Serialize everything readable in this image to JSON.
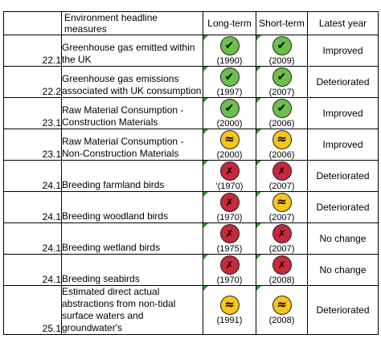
{
  "header": {
    "measure": "Environment headline measures",
    "long_term": "Long-term",
    "short_term": "Short-term",
    "latest_year": "Latest year"
  },
  "status_symbols": {
    "improving": "✔",
    "little_or_no_change": "≈",
    "deteriorating": "✗"
  },
  "status_colors": {
    "improving": "#6cc04a",
    "little_or_no_change": "#f5c518",
    "deteriorating": "#c8283c",
    "cell_marker": "#2f9a2f"
  },
  "rows": [
    {
      "id": "22.1",
      "measure": "Greenhouse gas emitted within the UK",
      "long": {
        "status": "improving",
        "year": "(1990)"
      },
      "short": {
        "status": "improving",
        "year": "(2009)"
      },
      "latest": "Improved"
    },
    {
      "id": "22.2",
      "measure": "Greenhouse gas emissions associated with UK consumption",
      "long": {
        "status": "improving",
        "year": "(1997)"
      },
      "short": {
        "status": "improving",
        "year": "(2007)"
      },
      "latest": "Deteriorated"
    },
    {
      "id": "23.1",
      "measure": "Raw Material Consumption - Construction Materials",
      "long": {
        "status": "improving",
        "year": "(2000)"
      },
      "short": {
        "status": "improving",
        "year": "(2006)"
      },
      "latest": "Improved"
    },
    {
      "id": "23.1",
      "measure": "Raw Material Consumption - Non-Construction Materials",
      "long": {
        "status": "little_or_no_change",
        "year": "(2000)"
      },
      "short": {
        "status": "little_or_no_change",
        "year": "(2006)"
      },
      "latest": "Improved"
    },
    {
      "id": "24.1",
      "measure": "Breeding farmland birds",
      "long": {
        "status": "deteriorating",
        "year": "'(1970)"
      },
      "short": {
        "status": "deteriorating",
        "year": "(2007)"
      },
      "latest": "Deteriorated"
    },
    {
      "id": "24.1",
      "measure": "Breeding woodland birds",
      "long": {
        "status": "deteriorating",
        "year": "(1970)"
      },
      "short": {
        "status": "little_or_no_change",
        "year": "(2007)"
      },
      "latest": "Deteriorated"
    },
    {
      "id": "24.1",
      "measure": "Breeding wetland birds",
      "long": {
        "status": "deteriorating",
        "year": "(1975)"
      },
      "short": {
        "status": "deteriorating",
        "year": "(2007)"
      },
      "latest": "No change"
    },
    {
      "id": "24.1",
      "measure": "Breeding seabirds",
      "long": {
        "status": "deteriorating",
        "year": "(1970)"
      },
      "short": {
        "status": "deteriorating",
        "year": "(2008)"
      },
      "latest": "No change"
    },
    {
      "id": "25.1",
      "measure": "Estimated direct actual abstractions from non-tidal surface waters and groundwater's",
      "long": {
        "status": "little_or_no_change",
        "year": "(1991)"
      },
      "short": {
        "status": "little_or_no_change",
        "year": "(2008)"
      },
      "latest": "Deteriorated"
    }
  ]
}
